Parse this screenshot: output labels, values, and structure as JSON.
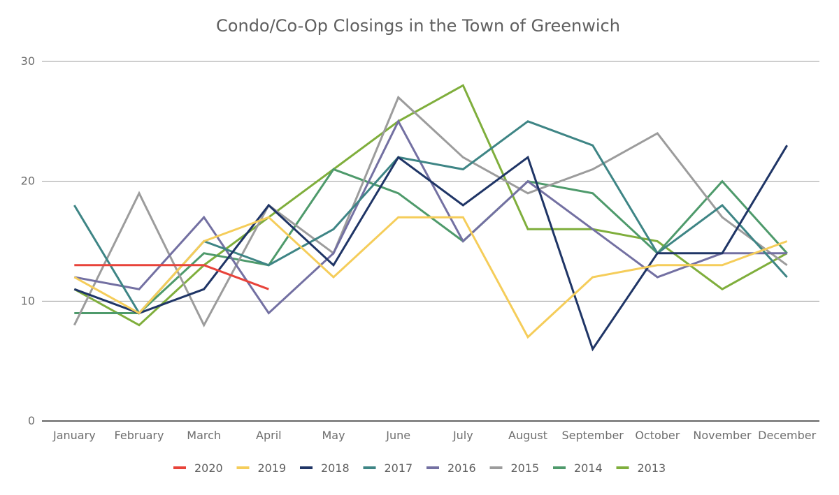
{
  "chart_data": {
    "type": "line",
    "title": "Condo/Co-Op Closings in the Town of Greenwich",
    "xlabel": "",
    "ylabel": "",
    "categories": [
      "January",
      "February",
      "March",
      "April",
      "May",
      "June",
      "July",
      "August",
      "September",
      "October",
      "November",
      "December"
    ],
    "ylim": [
      0,
      30
    ],
    "yticks": [
      0,
      10,
      20,
      30
    ],
    "grid": true,
    "legend_position": "bottom",
    "series": [
      {
        "name": "2020",
        "color": "#e8433a",
        "values": [
          13,
          13,
          13,
          11,
          null,
          null,
          null,
          null,
          null,
          null,
          null,
          null
        ]
      },
      {
        "name": "2019",
        "color": "#f5cd5a",
        "values": [
          12,
          9,
          15,
          17,
          12,
          17,
          17,
          7,
          12,
          13,
          13,
          15
        ]
      },
      {
        "name": "2018",
        "color": "#1f3566",
        "values": [
          11,
          9,
          11,
          18,
          13,
          22,
          18,
          22,
          6,
          14,
          14,
          23
        ]
      },
      {
        "name": "2017",
        "color": "#3e8585",
        "values": [
          18,
          9,
          15,
          13,
          16,
          22,
          21,
          25,
          23,
          14,
          18,
          12
        ]
      },
      {
        "name": "2016",
        "color": "#7370a2",
        "values": [
          12,
          11,
          17,
          9,
          14,
          25,
          15,
          20,
          16,
          12,
          14,
          14
        ]
      },
      {
        "name": "2015",
        "color": "#9c9c9c",
        "values": [
          8,
          19,
          8,
          18,
          14,
          27,
          22,
          19,
          21,
          24,
          17,
          13
        ]
      },
      {
        "name": "2014",
        "color": "#4e9a6b",
        "values": [
          9,
          9,
          14,
          13,
          21,
          19,
          15,
          20,
          19,
          14,
          20,
          14
        ]
      },
      {
        "name": "2013",
        "color": "#7fae3c",
        "values": [
          11,
          8,
          13,
          17,
          21,
          25,
          28,
          16,
          16,
          15,
          11,
          14
        ]
      }
    ]
  }
}
